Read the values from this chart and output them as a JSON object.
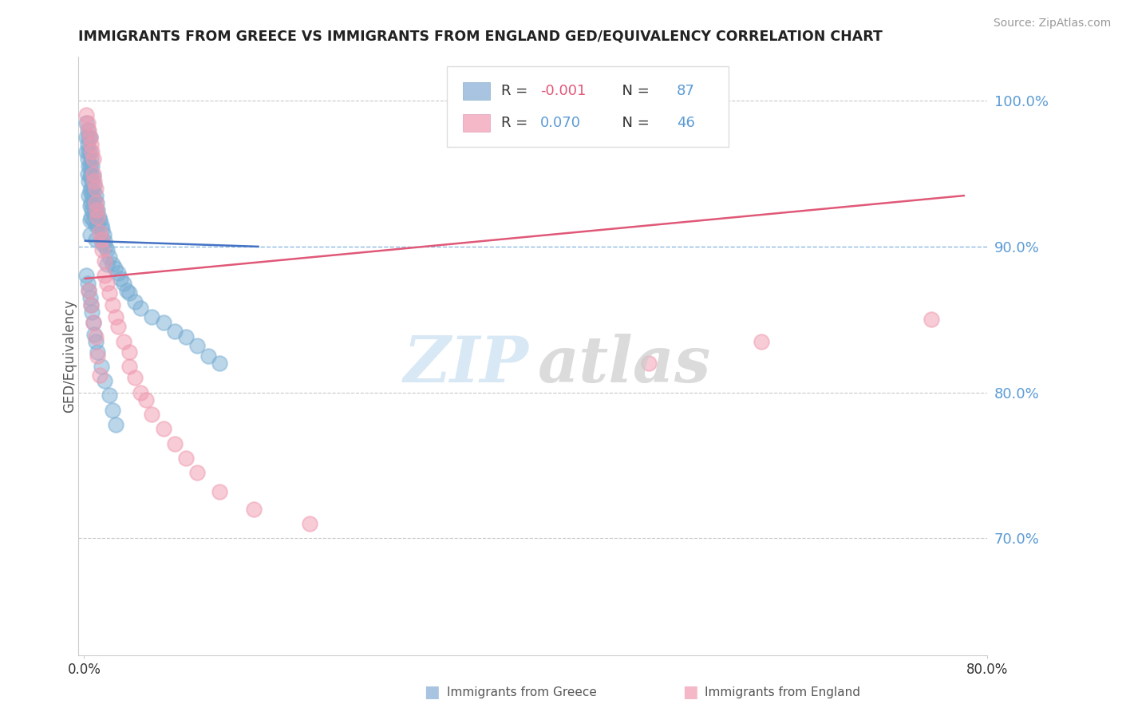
{
  "title": "IMMIGRANTS FROM GREECE VS IMMIGRANTS FROM ENGLAND GED/EQUIVALENCY CORRELATION CHART",
  "source": "Source: ZipAtlas.com",
  "ylabel": "GED/Equivalency",
  "ytick_labels": [
    "70.0%",
    "80.0%",
    "90.0%",
    "100.0%"
  ],
  "ytick_values": [
    0.7,
    0.8,
    0.9,
    1.0
  ],
  "xlim": [
    0.0,
    0.8
  ],
  "ylim": [
    0.62,
    1.03
  ],
  "greece_color": "#7bafd4",
  "england_color": "#f09ab0",
  "trend_greece_color": "#4472c4",
  "trend_england_color": "#e05878",
  "grid_color": "#bbbbbb",
  "blue_dash_color": "#5b9bd5",
  "legend_r1": "R = -0.001",
  "legend_n1": "N = 87",
  "legend_r2": "R =  0.070",
  "legend_n2": "N = 46",
  "legend_sq1": "#a8c4e0",
  "legend_sq2": "#f4b8c8",
  "watermark_zip": "ZIP",
  "watermark_atlas": "atlas",
  "bottom_legend_1": "Immigrants from Greece",
  "bottom_legend_2": "Immigrants from England",
  "greece_x": [
    0.002,
    0.002,
    0.002,
    0.003,
    0.003,
    0.003,
    0.003,
    0.004,
    0.004,
    0.004,
    0.004,
    0.004,
    0.005,
    0.005,
    0.005,
    0.005,
    0.005,
    0.005,
    0.005,
    0.005,
    0.006,
    0.006,
    0.006,
    0.006,
    0.006,
    0.007,
    0.007,
    0.007,
    0.007,
    0.008,
    0.008,
    0.008,
    0.008,
    0.009,
    0.009,
    0.009,
    0.01,
    0.01,
    0.01,
    0.01,
    0.011,
    0.011,
    0.012,
    0.012,
    0.013,
    0.014,
    0.015,
    0.015,
    0.016,
    0.016,
    0.017,
    0.018,
    0.019,
    0.02,
    0.02,
    0.022,
    0.025,
    0.027,
    0.03,
    0.032,
    0.035,
    0.038,
    0.04,
    0.045,
    0.05,
    0.06,
    0.07,
    0.08,
    0.09,
    0.1,
    0.11,
    0.12,
    0.002,
    0.003,
    0.004,
    0.005,
    0.006,
    0.007,
    0.008,
    0.009,
    0.01,
    0.012,
    0.015,
    0.018,
    0.022,
    0.025,
    0.028
  ],
  "greece_y": [
    0.985,
    0.975,
    0.965,
    0.98,
    0.97,
    0.96,
    0.95,
    0.975,
    0.965,
    0.955,
    0.945,
    0.935,
    0.975,
    0.965,
    0.955,
    0.948,
    0.938,
    0.928,
    0.918,
    0.908,
    0.96,
    0.95,
    0.94,
    0.93,
    0.92,
    0.955,
    0.945,
    0.935,
    0.925,
    0.948,
    0.938,
    0.928,
    0.918,
    0.942,
    0.932,
    0.922,
    0.935,
    0.925,
    0.915,
    0.905,
    0.93,
    0.92,
    0.925,
    0.915,
    0.92,
    0.918,
    0.915,
    0.905,
    0.912,
    0.902,
    0.908,
    0.904,
    0.9,
    0.898,
    0.888,
    0.893,
    0.888,
    0.885,
    0.882,
    0.878,
    0.875,
    0.87,
    0.868,
    0.862,
    0.858,
    0.852,
    0.848,
    0.842,
    0.838,
    0.832,
    0.825,
    0.82,
    0.88,
    0.875,
    0.87,
    0.865,
    0.86,
    0.855,
    0.848,
    0.84,
    0.835,
    0.828,
    0.818,
    0.808,
    0.798,
    0.788,
    0.778
  ],
  "england_x": [
    0.002,
    0.003,
    0.004,
    0.005,
    0.006,
    0.007,
    0.008,
    0.008,
    0.009,
    0.01,
    0.01,
    0.011,
    0.012,
    0.014,
    0.015,
    0.016,
    0.018,
    0.018,
    0.02,
    0.022,
    0.025,
    0.028,
    0.03,
    0.035,
    0.04,
    0.04,
    0.045,
    0.05,
    0.055,
    0.06,
    0.07,
    0.08,
    0.09,
    0.1,
    0.12,
    0.15,
    0.2,
    0.004,
    0.006,
    0.008,
    0.01,
    0.012,
    0.014,
    0.75,
    0.6,
    0.5
  ],
  "england_y": [
    0.99,
    0.985,
    0.98,
    0.975,
    0.97,
    0.965,
    0.96,
    0.95,
    0.945,
    0.94,
    0.93,
    0.925,
    0.92,
    0.91,
    0.905,
    0.898,
    0.89,
    0.88,
    0.875,
    0.868,
    0.86,
    0.852,
    0.845,
    0.835,
    0.828,
    0.818,
    0.81,
    0.8,
    0.795,
    0.785,
    0.775,
    0.765,
    0.755,
    0.745,
    0.732,
    0.72,
    0.71,
    0.87,
    0.86,
    0.848,
    0.838,
    0.825,
    0.812,
    0.85,
    0.835,
    0.82
  ],
  "greece_trend_x": [
    0.0,
    0.155
  ],
  "greece_trend_y": [
    0.904,
    0.9
  ],
  "england_trend_x": [
    0.0,
    0.78
  ],
  "england_trend_y": [
    0.878,
    0.935
  ]
}
